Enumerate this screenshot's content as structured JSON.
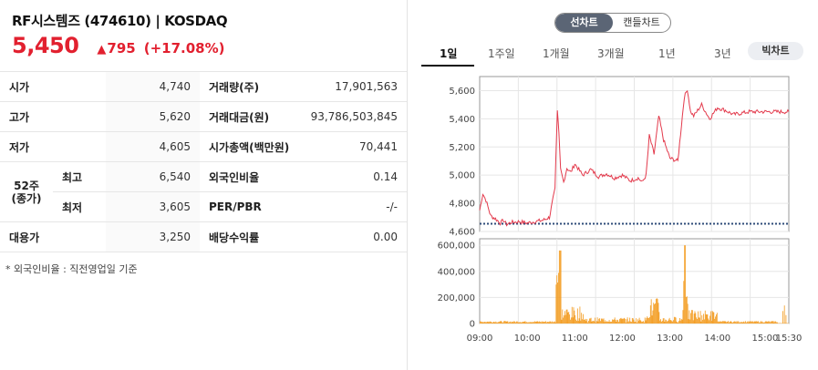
{
  "header": {
    "stock_name": "RF시스템즈 (474610) | KOSDAQ",
    "price": "5,450",
    "change": "795",
    "change_arrow": "▲",
    "change_rate": "(+17.08%)"
  },
  "info": {
    "open_label": "시가",
    "open": "4,740",
    "high_label": "고가",
    "high": "5,620",
    "low_label": "저가",
    "low": "4,605",
    "w52_label": "52주\n(종가)",
    "w52_high_label": "최고",
    "w52_high": "6,540",
    "w52_low_label": "최저",
    "w52_low": "3,605",
    "base_label": "대용가",
    "base": "3,250",
    "volume_label": "거래량(주)",
    "volume": "17,901,563",
    "amount_label": "거래대금(원)",
    "amount": "93,786,503,845",
    "mcap_label": "시가총액(백만원)",
    "mcap": "70,441",
    "foreign_label": "외국인비율",
    "foreign": "0.14",
    "per_label": "PER/PBR",
    "per": "-/-",
    "div_label": "배당수익률",
    "div": "0.00"
  },
  "note": "* 외국인비율 : 직전영업일 기준",
  "chart_toggle": {
    "line": "선차트",
    "candle": "캔들차트"
  },
  "tabs": [
    "1일",
    "1주일",
    "1개월",
    "3개월",
    "1년",
    "3년"
  ],
  "big_chart_label": "빅차트",
  "chart_data": [
    {
      "type": "line",
      "title": "",
      "y_ticks": [
        "5,600",
        "5,400",
        "5,200",
        "5,000",
        "4,800",
        "4,600"
      ],
      "ylim": [
        4600,
        5700
      ],
      "baseline": 4655,
      "color": "#e33a4c",
      "x": [
        0,
        4,
        8,
        14,
        20,
        26,
        30,
        34,
        40,
        50,
        60,
        70,
        80,
        88,
        95,
        98,
        100,
        102,
        104,
        106,
        110,
        115,
        120,
        130,
        140,
        150,
        160,
        170,
        180,
        190,
        200,
        205,
        210,
        214,
        220,
        226,
        232,
        240,
        250,
        258,
        262,
        266,
        270,
        280,
        290,
        300,
        310,
        320,
        330,
        340,
        350,
        360,
        370,
        380,
        390
      ],
      "values": [
        4750,
        4870,
        4820,
        4710,
        4690,
        4660,
        4680,
        4650,
        4665,
        4670,
        4660,
        4670,
        4680,
        4700,
        4900,
        5460,
        5300,
        5050,
        5000,
        4950,
        5050,
        5020,
        5080,
        5000,
        5040,
        4990,
        5010,
        4980,
        5000,
        4960,
        4980,
        4950,
        5000,
        5280,
        5150,
        5420,
        5250,
        5120,
        5100,
        5550,
        5610,
        5450,
        5420,
        5500,
        5400,
        5480,
        5460,
        5430,
        5440,
        5450,
        5450,
        5450,
        5450,
        5450,
        5450
      ]
    },
    {
      "type": "bar",
      "title": "",
      "y_ticks": [
        "600,000",
        "400,000",
        "200,000",
        "0"
      ],
      "ylim": [
        0,
        650000
      ],
      "color": "#f39a1c",
      "x_ticks": [
        "09:00",
        "10:00",
        "11:00",
        "12:00",
        "13:00",
        "14:00",
        "15:00",
        "15:30"
      ]
    }
  ]
}
